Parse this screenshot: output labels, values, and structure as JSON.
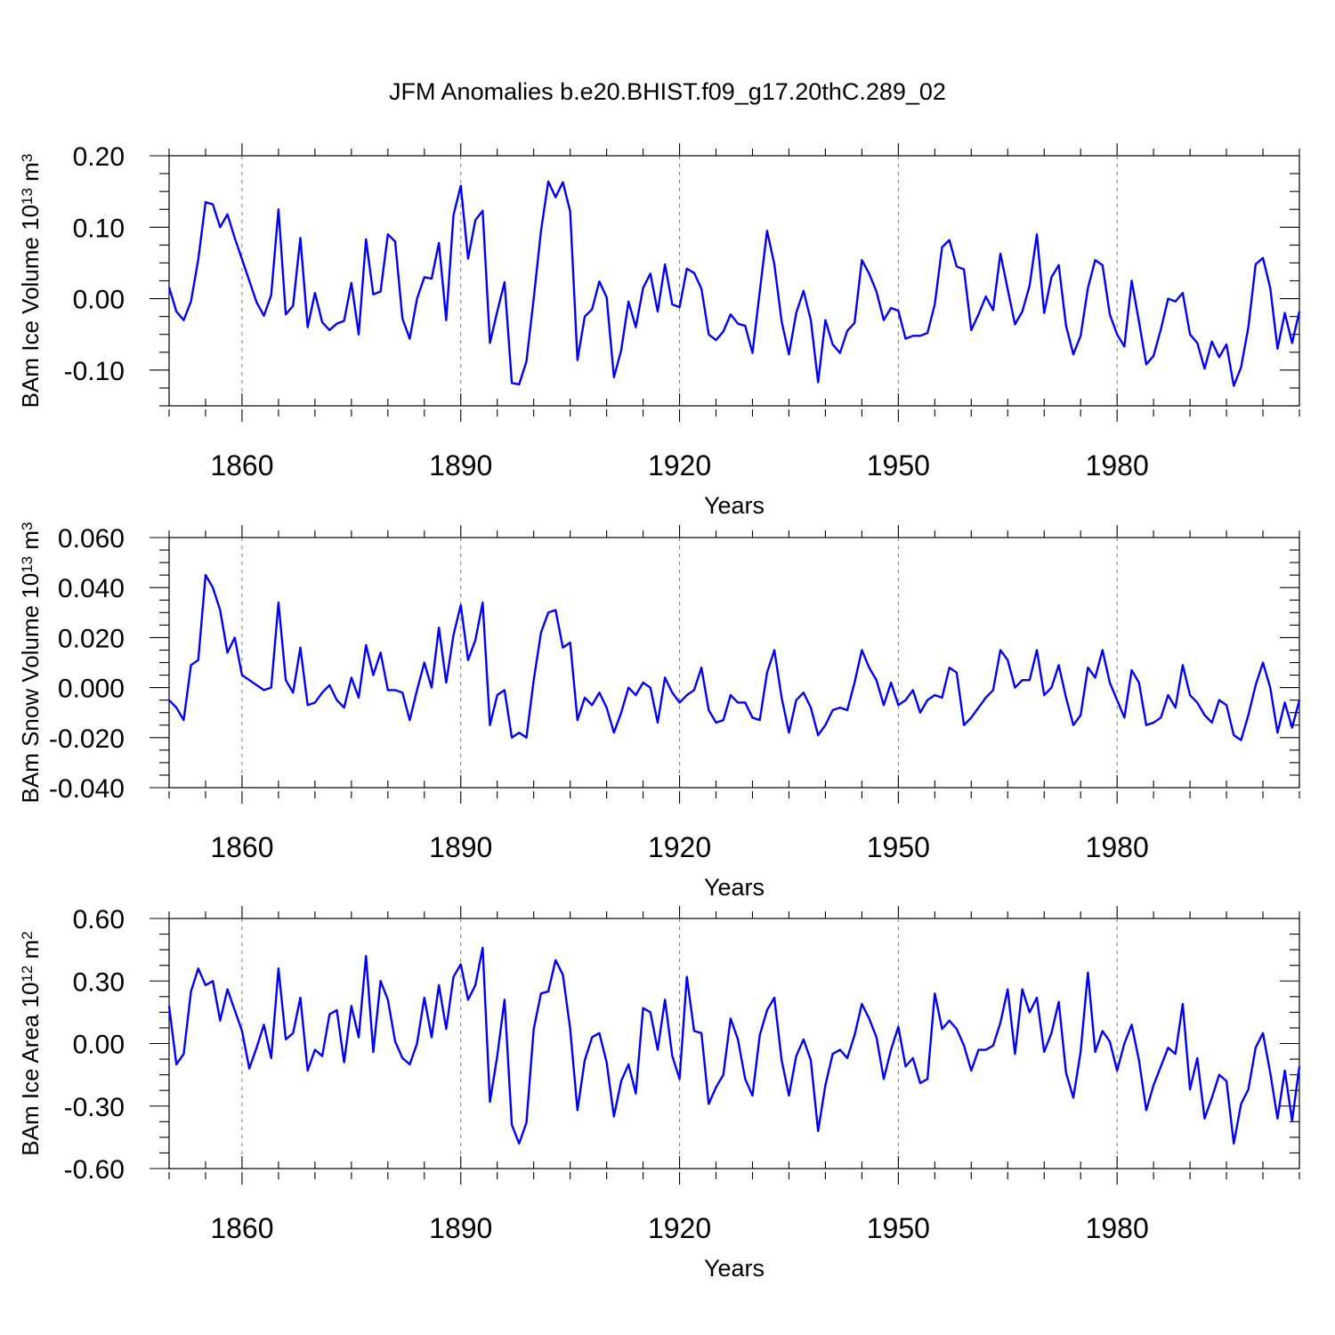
{
  "chart_data": {
    "title": "JFM Anomalies b.e20.BHIST.f09_g17.20thC.289_02",
    "panels": [
      {
        "type": "line",
        "ylabel": "BAm Ice Volume 10",
        "ylabel_exp": "13",
        "ylabel_unit": " m",
        "ylabel_unit_exp": "3",
        "xlabel": "Years",
        "xlim": [
          1850,
          2005
        ],
        "ylim": [
          -0.15,
          0.2
        ],
        "yticks": [
          -0.1,
          0.0,
          0.1,
          0.2
        ],
        "ytick_labels": [
          "-0.10",
          "0.00",
          "0.10",
          "0.20"
        ],
        "xticks": [
          1860,
          1890,
          1920,
          1950,
          1980
        ],
        "xtick_labels": [
          "1860",
          "1890",
          "1920",
          "1950",
          "1980"
        ],
        "x_start": 1850,
        "values": [
          0.016,
          -0.018,
          -0.03,
          -0.004,
          0.055,
          0.135,
          0.132,
          0.1,
          0.118,
          0.085,
          0.055,
          0.025,
          -0.005,
          -0.024,
          0.005,
          0.125,
          -0.022,
          -0.01,
          0.085,
          -0.04,
          0.008,
          -0.033,
          -0.044,
          -0.035,
          -0.031,
          0.022,
          -0.05,
          0.083,
          0.006,
          0.01,
          0.09,
          0.08,
          -0.028,
          -0.056,
          0.0,
          0.03,
          0.028,
          0.078,
          -0.03,
          0.117,
          0.158,
          0.056,
          0.11,
          0.123,
          -0.062,
          -0.018,
          0.023,
          -0.118,
          -0.12,
          -0.088,
          0.0,
          0.095,
          0.164,
          0.142,
          0.163,
          0.122,
          -0.086,
          -0.025,
          -0.015,
          0.024,
          0.002,
          -0.11,
          -0.072,
          -0.004,
          -0.04,
          0.015,
          0.035,
          -0.018,
          0.048,
          -0.008,
          -0.012,
          0.042,
          0.036,
          0.014,
          -0.05,
          -0.058,
          -0.046,
          -0.022,
          -0.035,
          -0.038,
          -0.076,
          0.01,
          0.095,
          0.048,
          -0.032,
          -0.078,
          -0.02,
          0.011,
          -0.03,
          -0.117,
          -0.03,
          -0.064,
          -0.076,
          -0.045,
          -0.034,
          0.054,
          0.035,
          0.01,
          -0.03,
          -0.013,
          -0.017,
          -0.056,
          -0.052,
          -0.052,
          -0.048,
          -0.008,
          0.072,
          0.082,
          0.045,
          0.041,
          -0.044,
          -0.022,
          0.003,
          -0.016,
          0.063,
          0.013,
          -0.036,
          -0.018,
          0.018,
          0.09,
          -0.02,
          0.03,
          0.047,
          -0.038,
          -0.078,
          -0.052,
          0.015,
          0.054,
          0.047,
          -0.022,
          -0.05,
          -0.067,
          0.025,
          -0.032,
          -0.092,
          -0.08,
          -0.043,
          0.0,
          -0.004,
          0.008,
          -0.05,
          -0.062,
          -0.098,
          -0.06,
          -0.082,
          -0.064,
          -0.122,
          -0.096,
          -0.04,
          0.048,
          0.057,
          0.015,
          -0.07,
          -0.02,
          -0.062,
          -0.018
        ]
      },
      {
        "type": "line",
        "ylabel": "BAm Snow Volume 10",
        "ylabel_exp": "13",
        "ylabel_unit": " m",
        "ylabel_unit_exp": "3",
        "xlabel": "Years",
        "xlim": [
          1850,
          2005
        ],
        "ylim": [
          -0.04,
          0.06
        ],
        "yticks": [
          -0.04,
          -0.02,
          0.0,
          0.02,
          0.04,
          0.06
        ],
        "ytick_labels": [
          "-0.040",
          "-0.020",
          "0.000",
          "0.020",
          "0.040",
          "0.060"
        ],
        "xticks": [
          1860,
          1890,
          1920,
          1950,
          1980
        ],
        "xtick_labels": [
          "1860",
          "1890",
          "1920",
          "1950",
          "1980"
        ],
        "x_start": 1850,
        "values": [
          -0.005,
          -0.008,
          -0.013,
          0.009,
          0.011,
          0.045,
          0.04,
          0.031,
          0.014,
          0.02,
          0.005,
          0.003,
          0.001,
          -0.001,
          0.0,
          0.034,
          0.003,
          -0.002,
          0.016,
          -0.007,
          -0.006,
          -0.002,
          0.001,
          -0.005,
          -0.008,
          0.004,
          -0.004,
          0.017,
          0.005,
          0.014,
          -0.001,
          -0.001,
          -0.002,
          -0.013,
          -0.001,
          0.01,
          0.0,
          0.024,
          0.002,
          0.021,
          0.033,
          0.011,
          0.019,
          0.034,
          -0.015,
          -0.003,
          -0.001,
          -0.02,
          -0.018,
          -0.02,
          0.003,
          0.022,
          0.03,
          0.031,
          0.016,
          0.018,
          -0.013,
          -0.004,
          -0.007,
          -0.002,
          -0.008,
          -0.018,
          -0.01,
          0.0,
          -0.003,
          0.002,
          0.0,
          -0.014,
          0.004,
          -0.002,
          -0.006,
          -0.003,
          -0.001,
          0.008,
          -0.009,
          -0.014,
          -0.013,
          -0.003,
          -0.006,
          -0.006,
          -0.012,
          -0.013,
          0.006,
          0.015,
          -0.004,
          -0.018,
          -0.005,
          -0.002,
          -0.008,
          -0.019,
          -0.015,
          -0.009,
          -0.008,
          -0.009,
          0.002,
          0.015,
          0.008,
          0.003,
          -0.007,
          0.002,
          -0.007,
          -0.005,
          -0.001,
          -0.01,
          -0.005,
          -0.003,
          -0.004,
          0.008,
          0.006,
          -0.015,
          -0.012,
          -0.008,
          -0.004,
          -0.001,
          0.015,
          0.011,
          0.0,
          0.003,
          0.003,
          0.015,
          -0.003,
          0.0,
          0.009,
          -0.004,
          -0.015,
          -0.011,
          0.008,
          0.004,
          0.015,
          0.002,
          -0.005,
          -0.012,
          0.007,
          0.002,
          -0.015,
          -0.014,
          -0.012,
          -0.003,
          -0.008,
          0.009,
          -0.003,
          -0.006,
          -0.011,
          -0.014,
          -0.005,
          -0.007,
          -0.019,
          -0.021,
          -0.011,
          0.001,
          0.01,
          0.0,
          -0.018,
          -0.006,
          -0.016,
          -0.005
        ]
      },
      {
        "type": "line",
        "ylabel": "BAm Ice Area 10",
        "ylabel_exp": "12",
        "ylabel_unit": " m",
        "ylabel_unit_exp": "2",
        "xlabel": "Years",
        "xlim": [
          1850,
          2005
        ],
        "ylim": [
          -0.6,
          0.6
        ],
        "yticks": [
          -0.6,
          -0.3,
          0.0,
          0.3,
          0.6
        ],
        "ytick_labels": [
          "-0.60",
          "-0.30",
          "0.00",
          "0.30",
          "0.60"
        ],
        "xticks": [
          1860,
          1890,
          1920,
          1950,
          1980
        ],
        "xtick_labels": [
          "1860",
          "1890",
          "1920",
          "1950",
          "1980"
        ],
        "x_start": 1850,
        "values": [
          0.18,
          -0.1,
          -0.05,
          0.25,
          0.36,
          0.28,
          0.3,
          0.11,
          0.26,
          0.16,
          0.06,
          -0.12,
          -0.02,
          0.09,
          -0.07,
          0.36,
          0.02,
          0.05,
          0.22,
          -0.13,
          -0.03,
          -0.06,
          0.14,
          0.16,
          -0.09,
          0.18,
          0.03,
          0.42,
          -0.04,
          0.3,
          0.21,
          0.01,
          -0.07,
          -0.1,
          0.0,
          0.22,
          0.03,
          0.28,
          0.07,
          0.32,
          0.38,
          0.21,
          0.28,
          0.46,
          -0.28,
          -0.06,
          0.21,
          -0.39,
          -0.48,
          -0.38,
          0.07,
          0.24,
          0.25,
          0.4,
          0.33,
          0.07,
          -0.32,
          -0.08,
          0.03,
          0.05,
          -0.09,
          -0.35,
          -0.18,
          -0.1,
          -0.24,
          0.17,
          0.15,
          -0.03,
          0.21,
          -0.06,
          -0.17,
          0.32,
          0.06,
          0.05,
          -0.29,
          -0.21,
          -0.15,
          0.12,
          0.02,
          -0.17,
          -0.25,
          0.04,
          0.16,
          0.22,
          -0.08,
          -0.25,
          -0.06,
          0.02,
          -0.08,
          -0.42,
          -0.2,
          -0.05,
          -0.03,
          -0.07,
          0.04,
          0.19,
          0.12,
          0.03,
          -0.17,
          -0.03,
          0.08,
          -0.11,
          -0.07,
          -0.19,
          -0.17,
          0.24,
          0.07,
          0.11,
          0.07,
          -0.01,
          -0.13,
          -0.03,
          -0.03,
          -0.01,
          0.1,
          0.26,
          -0.05,
          0.26,
          0.15,
          0.22,
          -0.04,
          0.05,
          0.2,
          -0.14,
          -0.26,
          -0.04,
          0.34,
          -0.04,
          0.06,
          0.01,
          -0.13,
          0.0,
          0.09,
          -0.08,
          -0.32,
          -0.2,
          -0.11,
          -0.02,
          -0.05,
          0.19,
          -0.22,
          -0.07,
          -0.36,
          -0.26,
          -0.15,
          -0.18,
          -0.48,
          -0.29,
          -0.22,
          -0.02,
          0.05,
          -0.14,
          -0.36,
          -0.13,
          -0.37,
          -0.11
        ]
      }
    ]
  }
}
